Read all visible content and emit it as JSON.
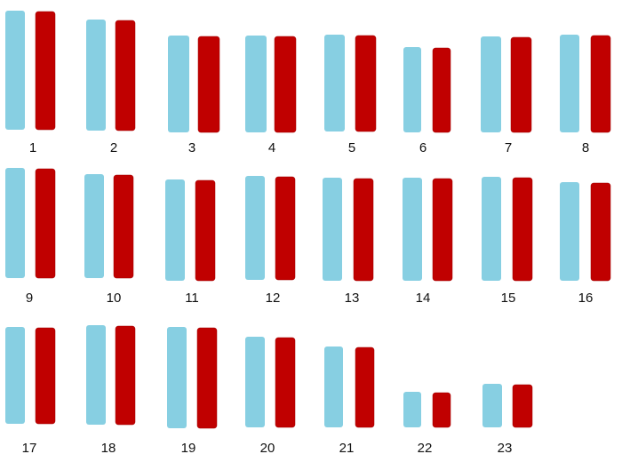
{
  "pairs": [
    {
      "label": "1"
    },
    {
      "label": "2"
    },
    {
      "label": "3"
    },
    {
      "label": "4"
    },
    {
      "label": "5"
    },
    {
      "label": "6"
    },
    {
      "label": "7"
    },
    {
      "label": "8"
    },
    {
      "label": "9"
    },
    {
      "label": "10"
    },
    {
      "label": "11"
    },
    {
      "label": "12"
    },
    {
      "label": "13"
    },
    {
      "label": "14"
    },
    {
      "label": "15"
    },
    {
      "label": "16"
    },
    {
      "label": "17"
    },
    {
      "label": "18"
    },
    {
      "label": "19"
    },
    {
      "label": "20"
    },
    {
      "label": "21"
    },
    {
      "label": "22"
    },
    {
      "label": "23"
    }
  ]
}
